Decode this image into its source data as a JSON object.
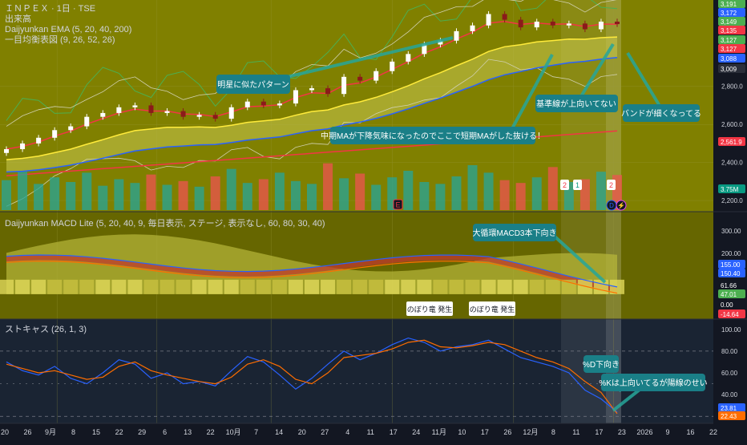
{
  "header": {
    "symbol_line": "ＩＮＰＥＸ · 1日 · TSE",
    "volume_label": "出来高",
    "ema_label": "Daijyunkan EMA (5, 20, 40, 200)",
    "ichimoku_label": "一目均衡表図 (9, 26, 52, 26)",
    "macd_label": "Daijyunkan MACD Lite (5, 20, 40, 9, 毎日表示, ステージ, 表示なし, 60, 80, 30, 40)",
    "stoch_label": "ストキャス (26, 1, 3)"
  },
  "price_axis": {
    "ticks": [
      "2,800.0",
      "2,600.0",
      "2,400.0",
      "2,200.0"
    ],
    "badges": [
      {
        "text": "3,191",
        "color": "#4caf50"
      },
      {
        "text": "3,172",
        "color": "#2962ff"
      },
      {
        "text": "3,149",
        "color": "#4caf50"
      },
      {
        "text": "3,135",
        "color": "#f23645"
      },
      {
        "text": "3,127",
        "color": "#4caf50"
      },
      {
        "text": "3,127",
        "color": "#f23645"
      },
      {
        "text": "3,088",
        "color": "#2962ff"
      },
      {
        "text": "3,009",
        "color": "#2a2e39"
      },
      {
        "text": "2,561.9",
        "color": "#f23645"
      },
      {
        "text": "3.75M",
        "color": "#089981"
      }
    ]
  },
  "macd_axis": {
    "ticks": [
      "300.00",
      "200.00"
    ],
    "badges": [
      {
        "text": "155.00",
        "color": "#2962ff"
      },
      {
        "text": "150.40",
        "color": "#2962ff"
      },
      {
        "text": "61.66",
        "color": "#131722"
      },
      {
        "text": "47.01",
        "color": "#4caf50"
      },
      {
        "text": "0.00",
        "color": "#131722"
      },
      {
        "text": "-14.64",
        "color": "#f23645"
      }
    ]
  },
  "stoch_axis": {
    "ticks": [
      "100.00",
      "80.00",
      "60.00",
      "40.00"
    ],
    "badges": [
      {
        "text": "23.81",
        "color": "#2962ff"
      },
      {
        "text": "22.43",
        "color": "#ff6d00"
      }
    ]
  },
  "time_axis": [
    "20",
    "26",
    "9月",
    "8",
    "15",
    "22",
    "29",
    "6",
    "13",
    "22",
    "10月",
    "7",
    "14",
    "20",
    "27",
    "4",
    "11",
    "17",
    "24",
    "11月",
    "10",
    "17",
    "26",
    "12月",
    "8",
    "11",
    "17",
    "23",
    "2026",
    "9",
    "16",
    "22"
  ],
  "event_markers": {
    "earnings": "E",
    "split1": "2",
    "split2": "1",
    "split3": "2",
    "dividend": "D"
  },
  "annotations": {
    "a1": "明星に似たパターン",
    "a2": "中期MAが下降気味になったのでここで短期MAがした抜ける！",
    "a3": "基準線が上向いてない",
    "a4": "バンドが細くなってる",
    "a5": "大循環MACD3本下向き",
    "a6": "のぼり竜 発生",
    "a7": "のぼり竜 発生",
    "a8": "%D下向き",
    "a9": "%Kは上向いてるが陽線のせい"
  },
  "chart_data": [
    {
      "type": "candlestick",
      "name": "ＩＮＰＥＸ · 1日 · TSE",
      "x": [
        "Aug 20",
        "Aug 22",
        "Aug 26",
        "Aug 28",
        "Sep 1",
        "Sep 4",
        "Sep 8",
        "Sep 11",
        "Sep 15",
        "Sep 18",
        "Sep 22",
        "Sep 26",
        "Sep 29",
        "Oct 2",
        "Oct 6",
        "Oct 9",
        "Oct 13",
        "Oct 16",
        "Oct 20",
        "Oct 23",
        "Oct 27",
        "Oct 30",
        "Nov 4",
        "Nov 7",
        "Nov 11",
        "Nov 14",
        "Nov 17",
        "Nov 20",
        "Nov 24",
        "Nov 27",
        "Dec 1",
        "Dec 4",
        "Dec 8",
        "Dec 11",
        "Dec 15",
        "Dec 18",
        "Dec 22",
        "Dec 25",
        "Dec 30"
      ],
      "close": [
        2470,
        2500,
        2530,
        2570,
        2590,
        2640,
        2660,
        2690,
        2700,
        2660,
        2670,
        2640,
        2650,
        2630,
        2690,
        2720,
        2700,
        2710,
        2780,
        2790,
        2760,
        2850,
        2830,
        2880,
        2930,
        2970,
        3020,
        3040,
        3090,
        3120,
        3180,
        3150,
        3110,
        3140,
        3120,
        3130,
        3100,
        3140,
        3127
      ],
      "volume": [
        3.2,
        4.1,
        2.8,
        3.5,
        3.0,
        4.0,
        2.6,
        3.3,
        2.9,
        3.8,
        2.7,
        3.1,
        2.5,
        3.6,
        4.4,
        2.9,
        3.3,
        4.0,
        3.1,
        2.8,
        5.0,
        3.4,
        3.9,
        2.7,
        3.5,
        4.2,
        3.0,
        2.8,
        3.6,
        4.8,
        4.0,
        3.2,
        2.9,
        3.5,
        4.6,
        3.0,
        3.3,
        4.1,
        3.75
      ],
      "ema": [
        {
          "name": "EMA 5",
          "color": "#f23645"
        },
        {
          "name": "EMA 20",
          "color": "#ffeb3b"
        },
        {
          "name": "EMA 40",
          "color": "#2962ff"
        },
        {
          "name": "EMA 200",
          "color": "#f23645"
        }
      ],
      "ylim": [
        2150,
        3220
      ]
    },
    {
      "type": "line",
      "name": "Daijyunkan MACD Lite",
      "ylim": [
        -20,
        330
      ]
    },
    {
      "type": "line",
      "name": "ストキャス (26, 1, 3)",
      "series": [
        {
          "name": "%K",
          "color": "#2962ff",
          "values": [
            70,
            62,
            58,
            66,
            55,
            50,
            60,
            72,
            68,
            55,
            60,
            50,
            52,
            48,
            62,
            75,
            70,
            58,
            45,
            55,
            68,
            80,
            72,
            78,
            86,
            92,
            88,
            80,
            84,
            86,
            90,
            82,
            74,
            70,
            66,
            60,
            44,
            36,
            23.81
          ]
        },
        {
          "name": "%D",
          "color": "#ff6d00",
          "values": [
            68,
            64,
            60,
            62,
            58,
            54,
            56,
            66,
            70,
            62,
            58,
            55,
            52,
            50,
            56,
            68,
            72,
            66,
            54,
            50,
            60,
            74,
            76,
            78,
            82,
            88,
            90,
            84,
            83,
            85,
            88,
            86,
            80,
            74,
            70,
            64,
            52,
            42,
            22.43
          ]
        }
      ],
      "ylim": [
        15,
        105
      ]
    }
  ]
}
